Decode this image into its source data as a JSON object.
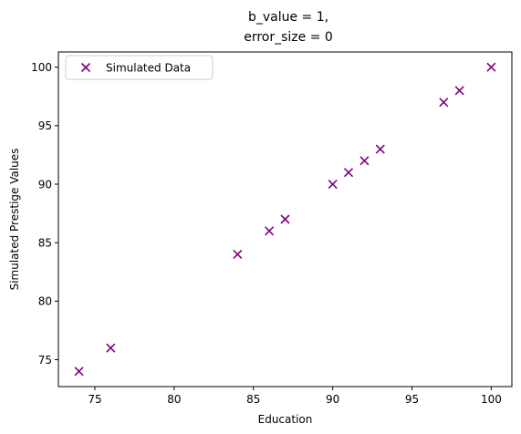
{
  "chart_data": {
    "type": "scatter",
    "title_line1": "b_value = 1,",
    "title_line2": "error_size = 0",
    "xlabel": "Education",
    "ylabel": "Simulated Prestige Values",
    "xlim": [
      72.7,
      101.3
    ],
    "ylim": [
      72.7,
      101.3
    ],
    "xticks": [
      75,
      80,
      85,
      90,
      95,
      100
    ],
    "yticks": [
      75,
      80,
      85,
      90,
      95,
      100
    ],
    "grid": false,
    "legend_position": "top-left",
    "series": [
      {
        "name": "Simulated Data",
        "marker": "x",
        "color": "#800080",
        "x": [
          74,
          76,
          84,
          86,
          87,
          90,
          91,
          92,
          93,
          97,
          98,
          100
        ],
        "y": [
          74,
          76,
          84,
          86,
          87,
          90,
          91,
          92,
          93,
          97,
          98,
          100
        ]
      }
    ]
  }
}
